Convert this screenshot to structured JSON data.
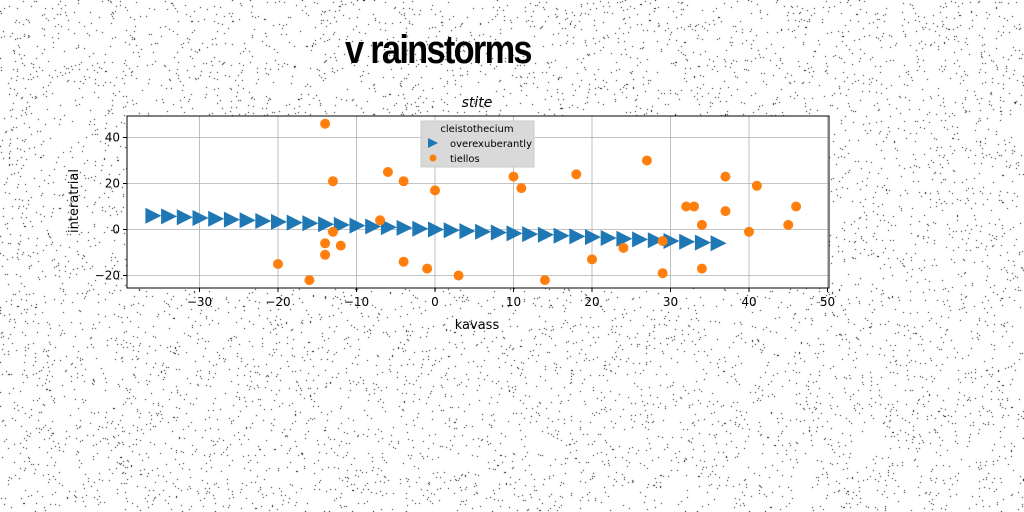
{
  "figure_title": "v rainstorms",
  "chart_data": {
    "type": "scatter",
    "title": "stite",
    "xlabel": "kavass",
    "ylabel": "interatrial",
    "xlim": [
      -38,
      50
    ],
    "ylim": [
      -26,
      50
    ],
    "xticks": [
      -30,
      -20,
      -10,
      0,
      10,
      20,
      30,
      40,
      50
    ],
    "yticks": [
      -20,
      0,
      20,
      40
    ],
    "grid": true,
    "legend": {
      "title": "cleistothecium",
      "placement": "top-center"
    },
    "series": [
      {
        "name": "overexuberantly",
        "marker": "triangle-right",
        "color": "#1f77b4",
        "x": [
          -36,
          -34,
          -32,
          -30,
          -28,
          -26,
          -24,
          -22,
          -20,
          -18,
          -16,
          -14,
          -12,
          -10,
          -8,
          -6,
          -4,
          -2,
          0,
          2,
          4,
          6,
          8,
          10,
          12,
          14,
          16,
          18,
          20,
          22,
          24,
          26,
          28,
          30,
          32,
          34,
          36
        ],
        "y": [
          6,
          5.7,
          5.3,
          5,
          4.7,
          4.3,
          4,
          3.7,
          3.3,
          3,
          2.7,
          2.3,
          2,
          1.7,
          1.3,
          1,
          0.7,
          0.3,
          0,
          -0.3,
          -0.7,
          -1,
          -1.3,
          -1.7,
          -2,
          -2.3,
          -2.7,
          -3,
          -3.3,
          -3.7,
          -4,
          -4.3,
          -4.7,
          -5,
          -5.3,
          -5.7,
          -6
        ]
      },
      {
        "name": "tiellos",
        "marker": "circle",
        "color": "#ff7f0e",
        "x": [
          -14,
          -13,
          -20,
          -16,
          -14,
          -14,
          -13,
          -12,
          -7,
          -6,
          -4,
          -4,
          -1,
          0,
          3,
          10,
          11,
          14,
          18,
          20,
          24,
          27,
          29,
          29,
          32,
          33,
          34,
          34,
          37,
          37,
          40,
          41,
          45,
          46
        ],
        "y": [
          46,
          21,
          -15,
          -22,
          -6,
          -11,
          -1,
          -7,
          4,
          25,
          21,
          -14,
          -17,
          17,
          -20,
          23,
          18,
          -22,
          24,
          -13,
          -8,
          30,
          -5,
          -19,
          10,
          10,
          2,
          -17,
          23,
          8,
          -1,
          19,
          2,
          10
        ]
      }
    ]
  }
}
